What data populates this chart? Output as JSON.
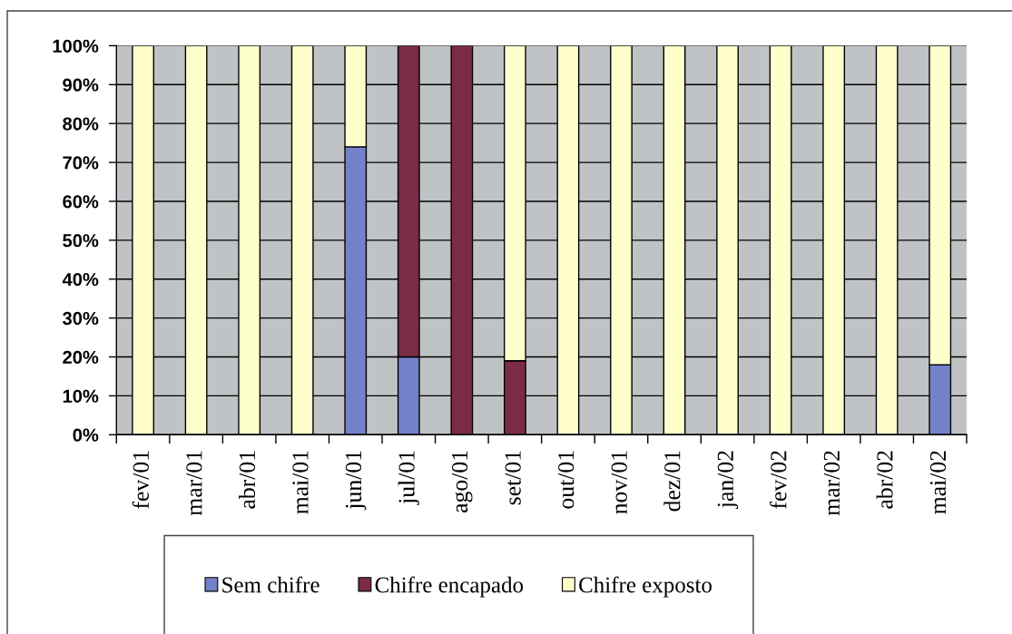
{
  "chart_data": {
    "type": "bar",
    "stacked": true,
    "categories": [
      "fev/01",
      "mar/01",
      "abr/01",
      "mai/01",
      "jun/01",
      "jul/01",
      "ago/01",
      "set/01",
      "out/01",
      "nov/01",
      "dez/01",
      "jan/02",
      "fev/02",
      "mar/02",
      "abr/02",
      "mai/02"
    ],
    "series": [
      {
        "name": "Sem chifre",
        "color": "#7381c9",
        "values": [
          0,
          0,
          0,
          0,
          74,
          20,
          0,
          0,
          0,
          0,
          0,
          0,
          0,
          0,
          0,
          18
        ]
      },
      {
        "name": "Chifre encapado",
        "color": "#7b2c44",
        "values": [
          0,
          0,
          0,
          0,
          0,
          80,
          100,
          19,
          0,
          0,
          0,
          0,
          0,
          0,
          0,
          0
        ]
      },
      {
        "name": "Chifre exposto",
        "color": "#ffffcc",
        "values": [
          100,
          100,
          100,
          100,
          26,
          0,
          0,
          81,
          100,
          100,
          100,
          100,
          100,
          100,
          100,
          82
        ]
      }
    ],
    "ylim": [
      0,
      100
    ],
    "yticks": [
      {
        "value": 0,
        "label": "0%"
      },
      {
        "value": 10,
        "label": "10%"
      },
      {
        "value": 20,
        "label": "20%"
      },
      {
        "value": 30,
        "label": "30%"
      },
      {
        "value": 40,
        "label": "40%"
      },
      {
        "value": 50,
        "label": "50%"
      },
      {
        "value": 60,
        "label": "60%"
      },
      {
        "value": 70,
        "label": "70%"
      },
      {
        "value": 80,
        "label": "80%"
      },
      {
        "value": 90,
        "label": "90%"
      },
      {
        "value": 100,
        "label": "100%"
      }
    ],
    "grid": "y",
    "legend": "bottom"
  }
}
